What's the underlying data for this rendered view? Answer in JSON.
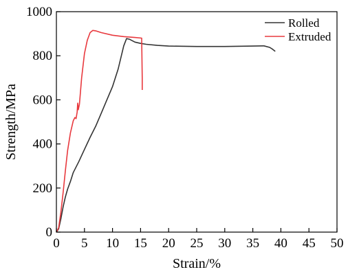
{
  "chart_data": {
    "type": "line",
    "title": "",
    "xlabel": "Strain/%",
    "ylabel": "Strength/MPa",
    "xlim": [
      0,
      50
    ],
    "ylim": [
      0,
      1000
    ],
    "x_ticks": [
      0,
      5,
      10,
      15,
      20,
      25,
      30,
      35,
      40,
      45,
      50
    ],
    "y_ticks": [
      0,
      200,
      400,
      600,
      800,
      1000
    ],
    "grid": false,
    "legend_position": "top-right",
    "series": [
      {
        "name": "Rolled",
        "color": "#333333",
        "points": [
          [
            0,
            0
          ],
          [
            0.4,
            15
          ],
          [
            0.8,
            60
          ],
          [
            1.2,
            115
          ],
          [
            1.6,
            160
          ],
          [
            2,
            195
          ],
          [
            2.5,
            230
          ],
          [
            3,
            270
          ],
          [
            4,
            320
          ],
          [
            5,
            375
          ],
          [
            6,
            430
          ],
          [
            7,
            480
          ],
          [
            8,
            540
          ],
          [
            9,
            600
          ],
          [
            10,
            660
          ],
          [
            11,
            740
          ],
          [
            12,
            845
          ],
          [
            12.5,
            878
          ],
          [
            13,
            875
          ],
          [
            14,
            862
          ],
          [
            15,
            856
          ],
          [
            16,
            852
          ],
          [
            18,
            847
          ],
          [
            20,
            844
          ],
          [
            25,
            842
          ],
          [
            30,
            842
          ],
          [
            35,
            844
          ],
          [
            37,
            845
          ],
          [
            38,
            838
          ],
          [
            38.5,
            830
          ],
          [
            39,
            820
          ]
        ]
      },
      {
        "name": "Extruded",
        "color": "#e8383d",
        "points": [
          [
            0,
            0
          ],
          [
            0.4,
            20
          ],
          [
            0.8,
            90
          ],
          [
            1.2,
            180
          ],
          [
            1.6,
            280
          ],
          [
            2,
            370
          ],
          [
            2.5,
            450
          ],
          [
            3,
            505
          ],
          [
            3.3,
            520
          ],
          [
            3.5,
            515
          ],
          [
            3.7,
            545
          ],
          [
            3.8,
            585
          ],
          [
            3.9,
            555
          ],
          [
            4.1,
            580
          ],
          [
            4.5,
            700
          ],
          [
            5,
            810
          ],
          [
            5.5,
            870
          ],
          [
            6,
            905
          ],
          [
            6.5,
            915
          ],
          [
            7,
            913
          ],
          [
            8,
            905
          ],
          [
            10,
            893
          ],
          [
            12,
            887
          ],
          [
            14,
            883
          ],
          [
            15.2,
            880
          ],
          [
            15.3,
            700
          ],
          [
            15.3,
            645
          ]
        ]
      }
    ]
  }
}
